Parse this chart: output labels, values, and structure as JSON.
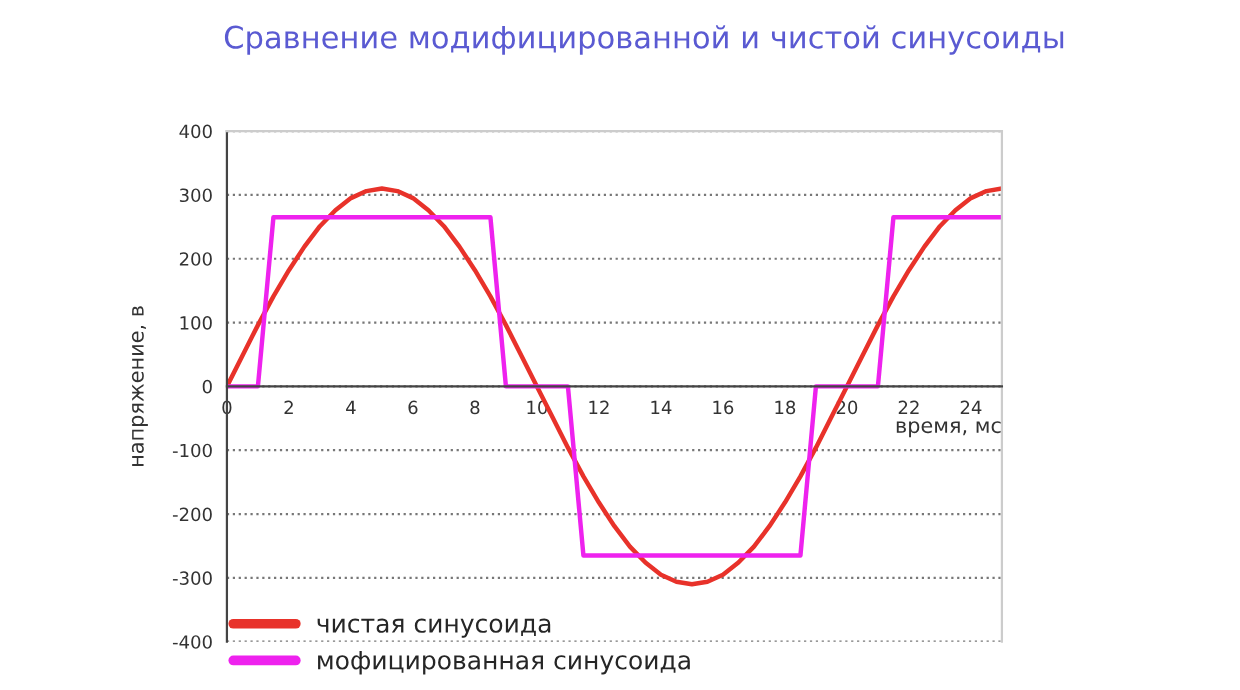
{
  "chart_data": {
    "type": "line",
    "title": "Сравнение модифицированной и чистой синусоиды",
    "xlabel": "время, мс",
    "ylabel": "напряжение, в",
    "xlim": [
      0,
      25
    ],
    "xticks": [
      0,
      2,
      4,
      6,
      8,
      10,
      12,
      14,
      16,
      18,
      20,
      22,
      24
    ],
    "ylim": [
      -400,
      400
    ],
    "yticks": [
      -400,
      -300,
      -200,
      -100,
      0,
      100,
      200,
      300,
      400
    ],
    "grid": "y",
    "legend": "bottom left",
    "marker": "none",
    "line_style": "solid",
    "series": [
      {
        "name": "чистая синусоида",
        "color": "#e8322a",
        "x": [
          0,
          0.5,
          1,
          1.5,
          2,
          2.5,
          3,
          3.5,
          4,
          4.5,
          5,
          5.5,
          6,
          6.5,
          7,
          7.5,
          8,
          8.5,
          9,
          9.5,
          10,
          10.5,
          11,
          11.5,
          12,
          12.5,
          13,
          13.5,
          14,
          14.5,
          15,
          15.5,
          16,
          16.5,
          17,
          17.5,
          18,
          18.5,
          19,
          19.5,
          20,
          20.5,
          21,
          21.5,
          22,
          22.5,
          23,
          23.5,
          24,
          24.5,
          25
        ],
        "values": [
          0,
          48,
          96,
          141,
          182,
          219,
          251,
          276,
          295,
          306,
          310,
          306,
          295,
          276,
          251,
          219,
          182,
          141,
          96,
          48,
          0,
          -48,
          -96,
          -141,
          -182,
          -219,
          -251,
          -276,
          -295,
          -306,
          -310,
          -306,
          -295,
          -276,
          -251,
          -219,
          -182,
          -141,
          -96,
          -48,
          0,
          48,
          96,
          141,
          182,
          219,
          251,
          276,
          295,
          306,
          310
        ]
      },
      {
        "name": "мофицированная синусоида",
        "color": "#ee22ee",
        "x": [
          0,
          1,
          1.5,
          8.5,
          9,
          11,
          11.5,
          18.5,
          19,
          21,
          21.5,
          25
        ],
        "values": [
          0,
          0,
          265,
          265,
          0,
          0,
          -265,
          -265,
          0,
          0,
          265,
          265
        ]
      }
    ]
  }
}
